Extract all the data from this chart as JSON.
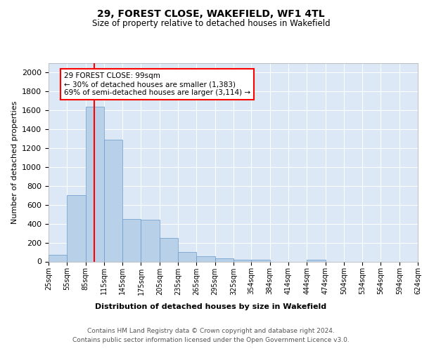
{
  "title": "29, FOREST CLOSE, WAKEFIELD, WF1 4TL",
  "subtitle": "Size of property relative to detached houses in Wakefield",
  "xlabel": "Distribution of detached houses by size in Wakefield",
  "ylabel": "Number of detached properties",
  "annotation_line1": "29 FOREST CLOSE: 99sqm",
  "annotation_line2": "← 30% of detached houses are smaller (1,383)",
  "annotation_line3": "69% of semi-detached houses are larger (3,114) →",
  "property_size": 99,
  "bin_edges": [
    25,
    55,
    85,
    115,
    145,
    175,
    205,
    235,
    265,
    295,
    325,
    354,
    384,
    414,
    444,
    474,
    504,
    534,
    564,
    594,
    624
  ],
  "bar_heights": [
    70,
    700,
    1640,
    1290,
    450,
    440,
    250,
    100,
    55,
    30,
    20,
    15,
    0,
    0,
    20,
    0,
    0,
    0,
    0,
    0,
    0
  ],
  "bar_color": "#b8d0e8",
  "bar_edge_color": "#6699cc",
  "red_line_x": 99,
  "ylim": [
    0,
    2100
  ],
  "yticks": [
    0,
    200,
    400,
    600,
    800,
    1000,
    1200,
    1400,
    1600,
    1800,
    2000
  ],
  "xtick_labels": [
    "25sqm",
    "55sqm",
    "85sqm",
    "115sqm",
    "145sqm",
    "175sqm",
    "205sqm",
    "235sqm",
    "265sqm",
    "295sqm",
    "325sqm",
    "354sqm",
    "384sqm",
    "414sqm",
    "444sqm",
    "474sqm",
    "504sqm",
    "534sqm",
    "564sqm",
    "594sqm",
    "624sqm"
  ],
  "footer_line1": "Contains HM Land Registry data © Crown copyright and database right 2024.",
  "footer_line2": "Contains public sector information licensed under the Open Government Licence v3.0.",
  "bg_color": "#dce8f5",
  "fig_bg_color": "#ffffff",
  "grid_color": "#ffffff",
  "title_fontsize": 10,
  "subtitle_fontsize": 8.5,
  "ylabel_fontsize": 8,
  "ytick_fontsize": 8,
  "xtick_fontsize": 7,
  "xlabel_fontsize": 8,
  "footer_fontsize": 6.5
}
